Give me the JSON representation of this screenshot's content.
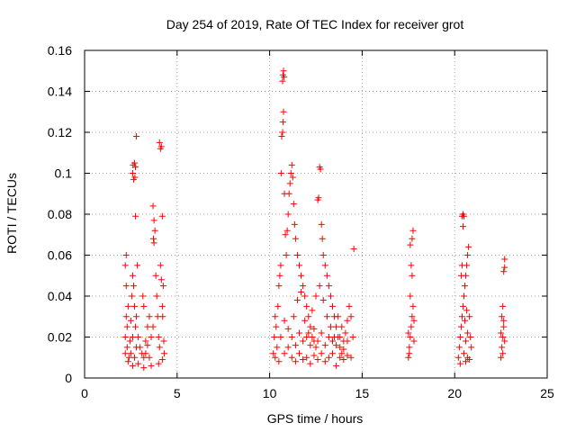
{
  "chart_data": {
    "type": "scatter",
    "title": "Day 254 of 2019, Rate Of TEC Index for receiver grot",
    "xlabel": "GPS time / hours",
    "ylabel": "ROTI / TECUs",
    "xlim": [
      0,
      25
    ],
    "ylim": [
      0,
      0.16
    ],
    "xticks": [
      0,
      5,
      10,
      15,
      20,
      25
    ],
    "xtick_labels": [
      "0",
      "5",
      "10",
      "15",
      "20",
      "25"
    ],
    "yticks": [
      0,
      0.02,
      0.04,
      0.06,
      0.08,
      0.1,
      0.12,
      0.14,
      0.16
    ],
    "ytick_labels": [
      "0",
      "0.02",
      "0.04",
      "0.06",
      "0.08",
      "0.1",
      "0.12",
      "0.14",
      "0.16"
    ],
    "grid": true,
    "marker": "plus",
    "color": "#ff0000",
    "points": [
      [
        2.2,
        0.012
      ],
      [
        2.2,
        0.02
      ],
      [
        2.25,
        0.03
      ],
      [
        2.25,
        0.045
      ],
      [
        2.3,
        0.015
      ],
      [
        2.3,
        0.025
      ],
      [
        2.35,
        0.035
      ],
      [
        2.2,
        0.055
      ],
      [
        2.25,
        0.06
      ],
      [
        2.4,
        0.01
      ],
      [
        2.45,
        0.018
      ],
      [
        2.5,
        0.028
      ],
      [
        2.55,
        0.04
      ],
      [
        2.6,
        0.05
      ],
      [
        2.65,
        0.045
      ],
      [
        2.7,
        0.035
      ],
      [
        2.75,
        0.025
      ],
      [
        2.8,
        0.015
      ],
      [
        2.5,
        0.012
      ],
      [
        2.6,
        0.02
      ],
      [
        2.7,
        0.01
      ],
      [
        2.8,
        0.03
      ],
      [
        2.6,
        0.1
      ],
      [
        2.62,
        0.104
      ],
      [
        2.65,
        0.097
      ],
      [
        2.7,
        0.105
      ],
      [
        2.75,
        0.103
      ],
      [
        2.72,
        0.098
      ],
      [
        2.8,
        0.118
      ],
      [
        2.75,
        0.079
      ],
      [
        2.85,
        0.055
      ],
      [
        2.9,
        0.02
      ],
      [
        3.0,
        0.015
      ],
      [
        3.1,
        0.012
      ],
      [
        3.2,
        0.01
      ],
      [
        3.3,
        0.018
      ],
      [
        3.4,
        0.025
      ],
      [
        3.5,
        0.03
      ],
      [
        3.15,
        0.04
      ],
      [
        3.2,
        0.035
      ],
      [
        3.3,
        0.012
      ],
      [
        3.4,
        0.016
      ],
      [
        3.5,
        0.01
      ],
      [
        3.6,
        0.02
      ],
      [
        3.7,
        0.025
      ],
      [
        3.72,
        0.068
      ],
      [
        3.75,
        0.066
      ],
      [
        3.8,
        0.072
      ],
      [
        3.7,
        0.084
      ],
      [
        3.75,
        0.077
      ],
      [
        3.85,
        0.05
      ],
      [
        3.9,
        0.04
      ],
      [
        3.95,
        0.03
      ],
      [
        4.0,
        0.02
      ],
      [
        4.05,
        0.015
      ],
      [
        4.1,
        0.055
      ],
      [
        4.15,
        0.048
      ],
      [
        4.2,
        0.035
      ],
      [
        4.25,
        0.045
      ],
      [
        4.05,
        0.115
      ],
      [
        4.1,
        0.112
      ],
      [
        4.15,
        0.113
      ],
      [
        4.2,
        0.079
      ],
      [
        4.22,
        0.03
      ],
      [
        4.28,
        0.018
      ],
      [
        4.3,
        0.012
      ],
      [
        2.35,
        0.008
      ],
      [
        2.6,
        0.006
      ],
      [
        2.9,
        0.007
      ],
      [
        3.2,
        0.005
      ],
      [
        3.6,
        0.006
      ],
      [
        4.0,
        0.007
      ],
      [
        4.2,
        0.009
      ],
      [
        10.2,
        0.012
      ],
      [
        10.25,
        0.02
      ],
      [
        10.3,
        0.03
      ],
      [
        10.35,
        0.025
      ],
      [
        10.4,
        0.015
      ],
      [
        10.45,
        0.035
      ],
      [
        10.5,
        0.045
      ],
      [
        10.55,
        0.05
      ],
      [
        10.6,
        0.055
      ],
      [
        10.62,
        0.1
      ],
      [
        10.65,
        0.118
      ],
      [
        10.7,
        0.12
      ],
      [
        10.72,
        0.125
      ],
      [
        10.75,
        0.13
      ],
      [
        10.7,
        0.145
      ],
      [
        10.72,
        0.148
      ],
      [
        10.75,
        0.15
      ],
      [
        10.78,
        0.147
      ],
      [
        10.8,
        0.09
      ],
      [
        10.85,
        0.07
      ],
      [
        10.9,
        0.06
      ],
      [
        10.95,
        0.072
      ],
      [
        11.0,
        0.08
      ],
      [
        11.05,
        0.09
      ],
      [
        11.1,
        0.095
      ],
      [
        11.15,
        0.1
      ],
      [
        11.2,
        0.104
      ],
      [
        11.25,
        0.098
      ],
      [
        11.3,
        0.085
      ],
      [
        11.35,
        0.075
      ],
      [
        11.4,
        0.068
      ],
      [
        11.5,
        0.06
      ],
      [
        11.6,
        0.055
      ],
      [
        11.7,
        0.05
      ],
      [
        11.8,
        0.045
      ],
      [
        11.9,
        0.04
      ],
      [
        12.0,
        0.035
      ],
      [
        12.1,
        0.03
      ],
      [
        12.2,
        0.025
      ],
      [
        12.3,
        0.02
      ],
      [
        12.4,
        0.018
      ],
      [
        12.5,
        0.015
      ],
      [
        12.6,
        0.087
      ],
      [
        12.65,
        0.088
      ],
      [
        12.7,
        0.103
      ],
      [
        12.75,
        0.102
      ],
      [
        12.8,
        0.075
      ],
      [
        12.85,
        0.068
      ],
      [
        12.9,
        0.06
      ],
      [
        13.0,
        0.055
      ],
      [
        13.1,
        0.05
      ],
      [
        13.2,
        0.045
      ],
      [
        13.3,
        0.04
      ],
      [
        13.4,
        0.035
      ],
      [
        13.5,
        0.03
      ],
      [
        13.6,
        0.025
      ],
      [
        13.7,
        0.02
      ],
      [
        13.8,
        0.015
      ],
      [
        13.9,
        0.012
      ],
      [
        14.0,
        0.018
      ],
      [
        14.1,
        0.022
      ],
      [
        14.2,
        0.028
      ],
      [
        14.3,
        0.035
      ],
      [
        14.4,
        0.03
      ],
      [
        14.5,
        0.02
      ],
      [
        14.55,
        0.063
      ],
      [
        10.3,
        0.01
      ],
      [
        10.5,
        0.008
      ],
      [
        10.8,
        0.012
      ],
      [
        11.0,
        0.015
      ],
      [
        11.2,
        0.01
      ],
      [
        11.4,
        0.008
      ],
      [
        11.6,
        0.012
      ],
      [
        11.8,
        0.009
      ],
      [
        12.0,
        0.01
      ],
      [
        12.2,
        0.007
      ],
      [
        12.4,
        0.011
      ],
      [
        12.6,
        0.009
      ],
      [
        12.8,
        0.012
      ],
      [
        13.0,
        0.008
      ],
      [
        13.2,
        0.01
      ],
      [
        13.4,
        0.012
      ],
      [
        13.6,
        0.006
      ],
      [
        13.8,
        0.01
      ],
      [
        14.0,
        0.009
      ],
      [
        14.2,
        0.011
      ],
      [
        14.4,
        0.01
      ],
      [
        11.3,
        0.03
      ],
      [
        11.5,
        0.038
      ],
      [
        11.7,
        0.042
      ],
      [
        11.9,
        0.028
      ],
      [
        12.1,
        0.022
      ],
      [
        12.3,
        0.033
      ],
      [
        12.5,
        0.04
      ],
      [
        12.7,
        0.045
      ],
      [
        12.9,
        0.038
      ],
      [
        13.1,
        0.03
      ],
      [
        13.3,
        0.025
      ],
      [
        13.5,
        0.02
      ],
      [
        13.7,
        0.03
      ],
      [
        13.9,
        0.025
      ],
      [
        10.6,
        0.02
      ],
      [
        10.8,
        0.028
      ],
      [
        11.0,
        0.024
      ],
      [
        11.2,
        0.02
      ],
      [
        11.4,
        0.016
      ],
      [
        11.6,
        0.022
      ],
      [
        11.8,
        0.018
      ],
      [
        12.0,
        0.02
      ],
      [
        12.2,
        0.016
      ],
      [
        12.4,
        0.024
      ],
      [
        12.6,
        0.018
      ],
      [
        12.8,
        0.022
      ],
      [
        13.0,
        0.016
      ],
      [
        13.2,
        0.02
      ],
      [
        13.4,
        0.018
      ],
      [
        13.6,
        0.016
      ],
      [
        13.8,
        0.02
      ],
      [
        14.0,
        0.014
      ],
      [
        14.2,
        0.018
      ],
      [
        17.5,
        0.01
      ],
      [
        17.55,
        0.015
      ],
      [
        17.6,
        0.02
      ],
      [
        17.65,
        0.025
      ],
      [
        17.7,
        0.03
      ],
      [
        17.75,
        0.035
      ],
      [
        17.6,
        0.04
      ],
      [
        17.7,
        0.05
      ],
      [
        17.65,
        0.055
      ],
      [
        17.6,
        0.065
      ],
      [
        17.7,
        0.068
      ],
      [
        17.75,
        0.072
      ],
      [
        17.55,
        0.012
      ],
      [
        17.8,
        0.018
      ],
      [
        17.5,
        0.022
      ],
      [
        17.8,
        0.028
      ],
      [
        20.2,
        0.01
      ],
      [
        20.25,
        0.015
      ],
      [
        20.3,
        0.02
      ],
      [
        20.35,
        0.025
      ],
      [
        20.4,
        0.03
      ],
      [
        20.45,
        0.035
      ],
      [
        20.5,
        0.04
      ],
      [
        20.55,
        0.045
      ],
      [
        20.6,
        0.05
      ],
      [
        20.65,
        0.055
      ],
      [
        20.4,
        0.079
      ],
      [
        20.45,
        0.08
      ],
      [
        20.5,
        0.079
      ],
      [
        20.45,
        0.074
      ],
      [
        20.7,
        0.06
      ],
      [
        20.75,
        0.064
      ],
      [
        20.8,
        0.03
      ],
      [
        20.85,
        0.02
      ],
      [
        20.9,
        0.015
      ],
      [
        20.7,
        0.01
      ],
      [
        20.6,
        0.008
      ],
      [
        20.3,
        0.007
      ],
      [
        20.8,
        0.009
      ],
      [
        20.5,
        0.012
      ],
      [
        20.6,
        0.018
      ],
      [
        20.7,
        0.022
      ],
      [
        20.55,
        0.028
      ],
      [
        20.65,
        0.033
      ],
      [
        20.35,
        0.05
      ],
      [
        20.4,
        0.055
      ],
      [
        22.5,
        0.01
      ],
      [
        22.55,
        0.015
      ],
      [
        22.6,
        0.02
      ],
      [
        22.65,
        0.025
      ],
      [
        22.55,
        0.03
      ],
      [
        22.6,
        0.035
      ],
      [
        22.65,
        0.028
      ],
      [
        22.5,
        0.022
      ],
      [
        22.6,
        0.012
      ],
      [
        22.7,
        0.018
      ],
      [
        22.65,
        0.052
      ],
      [
        22.7,
        0.054
      ],
      [
        22.7,
        0.058
      ]
    ]
  }
}
